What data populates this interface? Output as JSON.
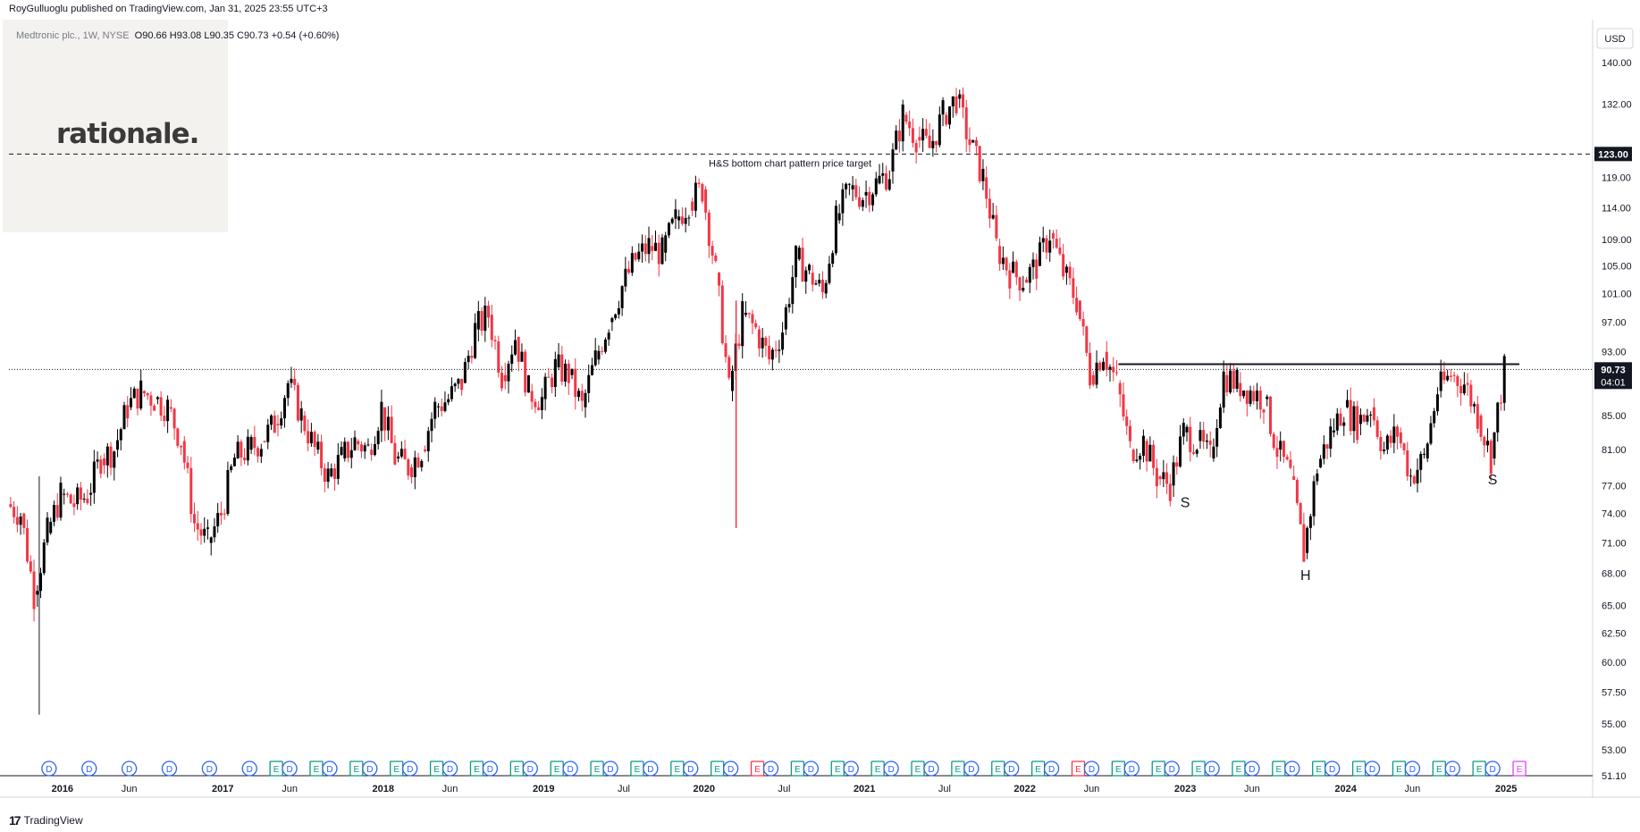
{
  "header": {
    "published": "RoyGulluoglu published on TradingView.com, Jan 31, 2025 23:55 UTC+3",
    "symbol": "Medtronic plc., 1W, NYSE",
    "ohlc": "O90.66  H93.08  L90.35  C90.73  +0.54 (+0.60%)"
  },
  "logo": {
    "text": "rationale."
  },
  "footer": {
    "brand": "TradingView",
    "icon": "tradingview-logo-icon"
  },
  "chart_data": {
    "type": "candlestick",
    "currency": "USD",
    "y_axis": {
      "scale": "log",
      "range": [
        51.1,
        145
      ],
      "ticks": [
        "140.00",
        "132.00",
        "119.00",
        "114.00",
        "109.00",
        "105.00",
        "101.00",
        "97.00",
        "93.00",
        "85.00",
        "81.00",
        "77.00",
        "74.00",
        "71.00",
        "68.00",
        "65.00",
        "62.50",
        "60.00",
        "57.50",
        "55.00",
        "53.00",
        "51.10"
      ]
    },
    "x_axis": {
      "range": [
        "2015-09",
        "2025-03"
      ],
      "labels": [
        {
          "t": "2016",
          "d": "2016-01"
        },
        {
          "t": "Jun",
          "d": "2016-06"
        },
        {
          "t": "2017",
          "d": "2017-01"
        },
        {
          "t": "Jun",
          "d": "2017-06"
        },
        {
          "t": "2018",
          "d": "2018-01"
        },
        {
          "t": "Jun",
          "d": "2018-06"
        },
        {
          "t": "2019",
          "d": "2019-01"
        },
        {
          "t": "Jul",
          "d": "2019-07"
        },
        {
          "t": "2020",
          "d": "2020-01"
        },
        {
          "t": "Jul",
          "d": "2020-07"
        },
        {
          "t": "2021",
          "d": "2021-01"
        },
        {
          "t": "Jul",
          "d": "2021-07"
        },
        {
          "t": "2022",
          "d": "2022-01"
        },
        {
          "t": "Jun",
          "d": "2022-06"
        },
        {
          "t": "2023",
          "d": "2023-01"
        },
        {
          "t": "Jun",
          "d": "2023-06"
        },
        {
          "t": "2024",
          "d": "2024-01"
        },
        {
          "t": "Jun",
          "d": "2024-06"
        },
        {
          "t": "2025",
          "d": "2025-01"
        }
      ]
    },
    "price_line": {
      "value": 90.73,
      "label": "90.73",
      "countdown": "04:01"
    },
    "target_line": {
      "value": 123.0,
      "label": "123.00",
      "annotation": "H&S bottom chart pattern price target"
    },
    "neckline": {
      "value": 91.4,
      "from": "2022-08",
      "to": "2025-02"
    },
    "pattern_labels": [
      {
        "text": "S",
        "date": "2023-01",
        "price": 76.0
      },
      {
        "text": "H",
        "date": "2023-10",
        "price": 68.6
      },
      {
        "text": "S",
        "date": "2024-12",
        "price": 78.5
      }
    ],
    "series": [
      {
        "date": "2015-09",
        "close": 75
      },
      {
        "date": "2015-10",
        "close": 74
      },
      {
        "date": "2015-11",
        "close": 66
      },
      {
        "date": "2015-12",
        "close": 72
      },
      {
        "date": "2016-01",
        "close": 76
      },
      {
        "date": "2016-02",
        "close": 75
      },
      {
        "date": "2016-03",
        "close": 76
      },
      {
        "date": "2016-04",
        "close": 80
      },
      {
        "date": "2016-05",
        "close": 81
      },
      {
        "date": "2016-06",
        "close": 86
      },
      {
        "date": "2016-07",
        "close": 88
      },
      {
        "date": "2016-08",
        "close": 87
      },
      {
        "date": "2016-09",
        "close": 86
      },
      {
        "date": "2016-10",
        "close": 82
      },
      {
        "date": "2016-11",
        "close": 73
      },
      {
        "date": "2016-12",
        "close": 71
      },
      {
        "date": "2017-01",
        "close": 74
      },
      {
        "date": "2017-02",
        "close": 80
      },
      {
        "date": "2017-03",
        "close": 81
      },
      {
        "date": "2017-04",
        "close": 82
      },
      {
        "date": "2017-05",
        "close": 84
      },
      {
        "date": "2017-06",
        "close": 89
      },
      {
        "date": "2017-07",
        "close": 85
      },
      {
        "date": "2017-08",
        "close": 81
      },
      {
        "date": "2017-09",
        "close": 78
      },
      {
        "date": "2017-10",
        "close": 80
      },
      {
        "date": "2017-11",
        "close": 82
      },
      {
        "date": "2017-12",
        "close": 81
      },
      {
        "date": "2018-01",
        "close": 86
      },
      {
        "date": "2018-02",
        "close": 80
      },
      {
        "date": "2018-03",
        "close": 79
      },
      {
        "date": "2018-04",
        "close": 81
      },
      {
        "date": "2018-05",
        "close": 86
      },
      {
        "date": "2018-06",
        "close": 87
      },
      {
        "date": "2018-07",
        "close": 89
      },
      {
        "date": "2018-08",
        "close": 96
      },
      {
        "date": "2018-09",
        "close": 98
      },
      {
        "date": "2018-10",
        "close": 90
      },
      {
        "date": "2018-11",
        "close": 95
      },
      {
        "date": "2018-12",
        "close": 88
      },
      {
        "date": "2019-01",
        "close": 87
      },
      {
        "date": "2019-02",
        "close": 91
      },
      {
        "date": "2019-03",
        "close": 90
      },
      {
        "date": "2019-04",
        "close": 86
      },
      {
        "date": "2019-05",
        "close": 92
      },
      {
        "date": "2019-06",
        "close": 97
      },
      {
        "date": "2019-07",
        "close": 102
      },
      {
        "date": "2019-08",
        "close": 106
      },
      {
        "date": "2019-09",
        "close": 108
      },
      {
        "date": "2019-10",
        "close": 107
      },
      {
        "date": "2019-11",
        "close": 112
      },
      {
        "date": "2019-12",
        "close": 115
      },
      {
        "date": "2020-01",
        "close": 117
      },
      {
        "date": "2020-02",
        "close": 104
      },
      {
        "date": "2020-03",
        "close": 88
      },
      {
        "date": "2020-04",
        "close": 98
      },
      {
        "date": "2020-05",
        "close": 96
      },
      {
        "date": "2020-06",
        "close": 92
      },
      {
        "date": "2020-07",
        "close": 96
      },
      {
        "date": "2020-08",
        "close": 106
      },
      {
        "date": "2020-09",
        "close": 104
      },
      {
        "date": "2020-10",
        "close": 101
      },
      {
        "date": "2020-11",
        "close": 112
      },
      {
        "date": "2020-12",
        "close": 117
      },
      {
        "date": "2021-01",
        "close": 116
      },
      {
        "date": "2021-02",
        "close": 118
      },
      {
        "date": "2021-03",
        "close": 120
      },
      {
        "date": "2021-04",
        "close": 130
      },
      {
        "date": "2021-05",
        "close": 126
      },
      {
        "date": "2021-06",
        "close": 124
      },
      {
        "date": "2021-07",
        "close": 130
      },
      {
        "date": "2021-08",
        "close": 133
      },
      {
        "date": "2021-09",
        "close": 125
      },
      {
        "date": "2021-10",
        "close": 119
      },
      {
        "date": "2021-11",
        "close": 108
      },
      {
        "date": "2021-12",
        "close": 104
      },
      {
        "date": "2022-01",
        "close": 103
      },
      {
        "date": "2022-02",
        "close": 105
      },
      {
        "date": "2022-03",
        "close": 110
      },
      {
        "date": "2022-04",
        "close": 104
      },
      {
        "date": "2022-05",
        "close": 100
      },
      {
        "date": "2022-06",
        "close": 90
      },
      {
        "date": "2022-07",
        "close": 93
      },
      {
        "date": "2022-08",
        "close": 89
      },
      {
        "date": "2022-09",
        "close": 81
      },
      {
        "date": "2022-10",
        "close": 82
      },
      {
        "date": "2022-11",
        "close": 78
      },
      {
        "date": "2022-12",
        "close": 77
      },
      {
        "date": "2023-01",
        "close": 83
      },
      {
        "date": "2023-02",
        "close": 82
      },
      {
        "date": "2023-03",
        "close": 80
      },
      {
        "date": "2023-04",
        "close": 90
      },
      {
        "date": "2023-05",
        "close": 89
      },
      {
        "date": "2023-06",
        "close": 88
      },
      {
        "date": "2023-07",
        "close": 87
      },
      {
        "date": "2023-08",
        "close": 81
      },
      {
        "date": "2023-09",
        "close": 78
      },
      {
        "date": "2023-10",
        "close": 70
      },
      {
        "date": "2023-11",
        "close": 79
      },
      {
        "date": "2023-12",
        "close": 83
      },
      {
        "date": "2024-01",
        "close": 86
      },
      {
        "date": "2024-02",
        "close": 84
      },
      {
        "date": "2024-03",
        "close": 86
      },
      {
        "date": "2024-04",
        "close": 81
      },
      {
        "date": "2024-05",
        "close": 83
      },
      {
        "date": "2024-06",
        "close": 78
      },
      {
        "date": "2024-07",
        "close": 80
      },
      {
        "date": "2024-08",
        "close": 88
      },
      {
        "date": "2024-09",
        "close": 90
      },
      {
        "date": "2024-10",
        "close": 89
      },
      {
        "date": "2024-11",
        "close": 85
      },
      {
        "date": "2024-12",
        "close": 80
      },
      {
        "date": "2025-01",
        "close": 90.73
      }
    ],
    "events": [
      {
        "date": "2015-12",
        "type": "D"
      },
      {
        "date": "2016-03",
        "type": "D"
      },
      {
        "date": "2016-06",
        "type": "D"
      },
      {
        "date": "2016-09",
        "type": "D"
      },
      {
        "date": "2016-12",
        "type": "D"
      },
      {
        "date": "2017-03",
        "type": "D"
      },
      {
        "date": "2017-05",
        "type": "E"
      },
      {
        "date": "2017-06",
        "type": "D"
      },
      {
        "date": "2017-08",
        "type": "E"
      },
      {
        "date": "2017-09",
        "type": "D"
      },
      {
        "date": "2017-11",
        "type": "E"
      },
      {
        "date": "2017-12",
        "type": "D"
      },
      {
        "date": "2018-02",
        "type": "E"
      },
      {
        "date": "2018-03",
        "type": "D"
      },
      {
        "date": "2018-05",
        "type": "E"
      },
      {
        "date": "2018-06",
        "type": "D"
      },
      {
        "date": "2018-08",
        "type": "E"
      },
      {
        "date": "2018-09",
        "type": "D"
      },
      {
        "date": "2018-11",
        "type": "E"
      },
      {
        "date": "2018-12",
        "type": "D"
      },
      {
        "date": "2019-02",
        "type": "E"
      },
      {
        "date": "2019-03",
        "type": "D"
      },
      {
        "date": "2019-05",
        "type": "E"
      },
      {
        "date": "2019-06",
        "type": "D"
      },
      {
        "date": "2019-08",
        "type": "E"
      },
      {
        "date": "2019-09",
        "type": "D"
      },
      {
        "date": "2019-11",
        "type": "E"
      },
      {
        "date": "2019-12",
        "type": "D"
      },
      {
        "date": "2020-02",
        "type": "E"
      },
      {
        "date": "2020-03",
        "type": "D"
      },
      {
        "date": "2020-05",
        "type": "E",
        "color": "red"
      },
      {
        "date": "2020-06",
        "type": "D"
      },
      {
        "date": "2020-08",
        "type": "E"
      },
      {
        "date": "2020-09",
        "type": "D"
      },
      {
        "date": "2020-11",
        "type": "E"
      },
      {
        "date": "2020-12",
        "type": "D"
      },
      {
        "date": "2021-02",
        "type": "E"
      },
      {
        "date": "2021-03",
        "type": "D"
      },
      {
        "date": "2021-05",
        "type": "E"
      },
      {
        "date": "2021-06",
        "type": "D"
      },
      {
        "date": "2021-08",
        "type": "E"
      },
      {
        "date": "2021-09",
        "type": "D"
      },
      {
        "date": "2021-11",
        "type": "E"
      },
      {
        "date": "2021-12",
        "type": "D"
      },
      {
        "date": "2022-02",
        "type": "E"
      },
      {
        "date": "2022-03",
        "type": "D"
      },
      {
        "date": "2022-05",
        "type": "E",
        "color": "red"
      },
      {
        "date": "2022-06",
        "type": "D"
      },
      {
        "date": "2022-08",
        "type": "E"
      },
      {
        "date": "2022-09",
        "type": "D"
      },
      {
        "date": "2022-11",
        "type": "E"
      },
      {
        "date": "2022-12",
        "type": "D"
      },
      {
        "date": "2023-02",
        "type": "E"
      },
      {
        "date": "2023-03",
        "type": "D"
      },
      {
        "date": "2023-05",
        "type": "E"
      },
      {
        "date": "2023-06",
        "type": "D"
      },
      {
        "date": "2023-08",
        "type": "E"
      },
      {
        "date": "2023-09",
        "type": "D"
      },
      {
        "date": "2023-11",
        "type": "E"
      },
      {
        "date": "2023-12",
        "type": "D"
      },
      {
        "date": "2024-02",
        "type": "E"
      },
      {
        "date": "2024-03",
        "type": "D"
      },
      {
        "date": "2024-05",
        "type": "E"
      },
      {
        "date": "2024-06",
        "type": "D"
      },
      {
        "date": "2024-08",
        "type": "E"
      },
      {
        "date": "2024-09",
        "type": "D"
      },
      {
        "date": "2024-11",
        "type": "E"
      },
      {
        "date": "2024-12",
        "type": "D"
      },
      {
        "date": "2025-02",
        "type": "E",
        "color": "magenta"
      }
    ],
    "colors": {
      "up": "#000000",
      "down": "#f23645",
      "dividend": "#2962ff",
      "earnings": "#089981",
      "earnings_red": "#f23645",
      "earnings_magenta": "#e040fb"
    }
  }
}
